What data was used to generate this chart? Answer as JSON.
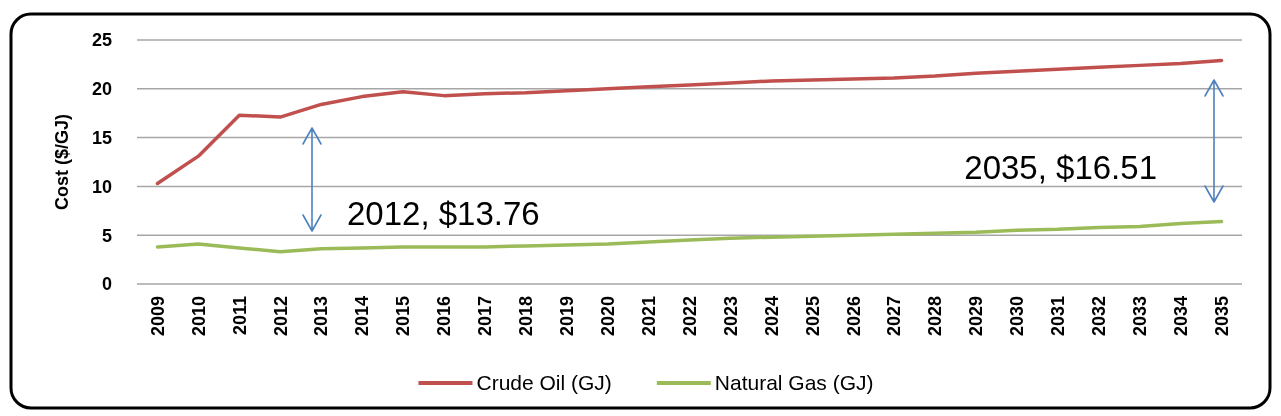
{
  "chart_data": {
    "type": "line",
    "ylabel": "Cost ($/GJ)",
    "categories": [
      "2009",
      "2010",
      "2011",
      "2012",
      "2013",
      "2014",
      "2015",
      "2016",
      "2017",
      "2018",
      "2019",
      "2020",
      "2021",
      "2022",
      "2023",
      "2024",
      "2025",
      "2026",
      "2027",
      "2028",
      "2029",
      "2030",
      "2031",
      "2032",
      "2033",
      "2034",
      "2035"
    ],
    "series": [
      {
        "name": "Crude Oil (GJ)",
        "color": "#c0504d",
        "values": [
          10.3,
          13.1,
          17.3,
          17.1,
          18.4,
          19.2,
          19.7,
          19.3,
          19.5,
          19.6,
          19.8,
          20.0,
          20.2,
          20.4,
          20.6,
          20.8,
          20.9,
          21.0,
          21.1,
          21.3,
          21.6,
          21.8,
          22.0,
          22.2,
          22.4,
          22.6,
          22.9
        ]
      },
      {
        "name": "Natural Gas (GJ)",
        "color": "#9bbb59",
        "values": [
          3.8,
          4.1,
          3.7,
          3.3,
          3.6,
          3.7,
          3.8,
          3.8,
          3.8,
          3.9,
          4.0,
          4.1,
          4.3,
          4.5,
          4.7,
          4.8,
          4.9,
          5.0,
          5.1,
          5.2,
          5.3,
          5.5,
          5.6,
          5.8,
          5.9,
          6.2,
          6.4
        ]
      }
    ],
    "ylim": [
      0,
      25
    ],
    "yticks": [
      0,
      5,
      10,
      15,
      20,
      25
    ],
    "grid": "y",
    "legend": "bottom",
    "annotations": [
      "2012, $13.76",
      "2035, $16.51"
    ]
  }
}
